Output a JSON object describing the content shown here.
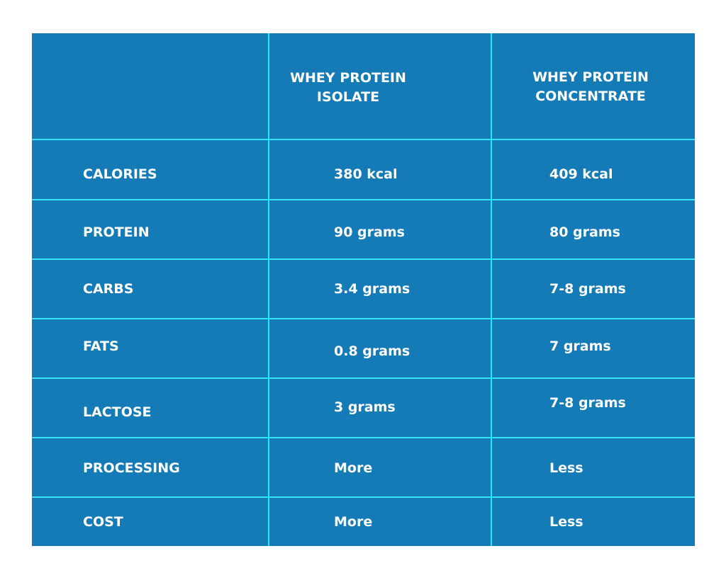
{
  "table": {
    "header": [
      "WHEY PROTEIN ISOLATE",
      "WHEY PROTEIN CONCENTRATE"
    ],
    "rows": [
      [
        "CALORIES",
        "380 kcal",
        "409 kcal"
      ],
      [
        "PROTEIN",
        "90 grams",
        "80 grams"
      ],
      [
        "CARBS",
        "3.4 grams",
        "7-8 grams"
      ],
      [
        "FATS",
        "0.8 grams",
        "7 grams"
      ],
      [
        "LACTOSE",
        "3 grams",
        "7-8 grams"
      ],
      [
        "PROCESSING",
        "More",
        "Less"
      ],
      [
        "COST",
        "More",
        "Less"
      ]
    ]
  }
}
